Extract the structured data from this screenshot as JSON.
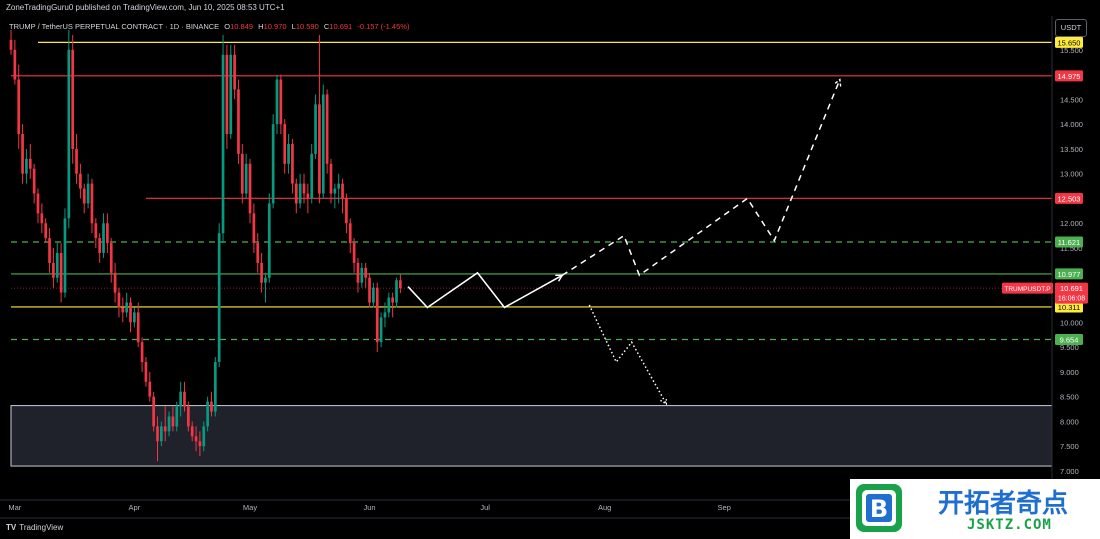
{
  "header": {
    "published_line": "ZoneTradingGuru0 published on TradingView.com, Jun 10, 2025 08:53 UTC+1",
    "symbol": "TRUMP / TetherUS PERPETUAL CONTRACT · 1D · BINANCE",
    "ohlc": {
      "o_label": "O",
      "o": "10.849",
      "h_label": "H",
      "h": "10.970",
      "l_label": "L",
      "l": "10.590",
      "c_label": "C",
      "c": "10.691",
      "change": "-0.157 (-1.45%)"
    },
    "currency": "USDT"
  },
  "footer": {
    "logo_text": "TradingView"
  },
  "watermark": {
    "cn_text": "开拓者奇点",
    "url": "JSKTZ.COM"
  },
  "chart_data": {
    "type": "candlestick",
    "title": "",
    "xlabel": "",
    "ylabel": "",
    "x_ticks": [
      "Mar",
      "Apr",
      "May",
      "Jun",
      "Jul",
      "Aug",
      "Sep"
    ],
    "x_tick_dates": [
      "2025-03-01",
      "2025-04-01",
      "2025-05-01",
      "2025-06-01",
      "2025-07-01",
      "2025-08-01",
      "2025-09-01"
    ],
    "x_range": [
      "2025-02-28",
      "2025-09-30"
    ],
    "y_ticks": [
      "7.000",
      "7.500",
      "8.000",
      "8.500",
      "9.000",
      "9.500",
      "10.000",
      "10.500",
      "11.000",
      "11.500",
      "12.000",
      "12.500",
      "13.000",
      "13.500",
      "14.000",
      "14.500",
      "15.000",
      "15.500"
    ],
    "y_range": [
      7.0,
      15.9
    ],
    "grid": false,
    "colors": {
      "up": "#089981",
      "down": "#f23645",
      "yellow": "#ffeb3b",
      "red": "#f23645",
      "green": "#4caf50",
      "white": "#ffffff",
      "zone": "#2a2e39"
    },
    "current_price": {
      "symbol_label": "TRUMPUSDT.P",
      "value": "10.691",
      "countdown": "16:06:08"
    },
    "price_labels": [
      {
        "value": "15.650",
        "color": "#ffeb3b",
        "text_color": "#000000"
      },
      {
        "value": "14.975",
        "color": "#f23645",
        "text_color": "#ffffff"
      },
      {
        "value": "12.503",
        "color": "#f23645",
        "text_color": "#ffffff"
      },
      {
        "value": "11.621",
        "color": "#4caf50",
        "text_color": "#ffffff"
      },
      {
        "value": "10.977",
        "color": "#4caf50",
        "text_color": "#ffffff"
      },
      {
        "value": "10.311",
        "color": "#ffeb3b",
        "text_color": "#000000"
      },
      {
        "value": "9.654",
        "color": "#4caf50",
        "text_color": "#ffffff"
      }
    ],
    "levels": [
      {
        "price": 15.65,
        "from": "2025-03-07",
        "color": "#ffeb3b",
        "style": "solid"
      },
      {
        "price": 14.975,
        "from": "2025-02-28",
        "color": "#f23645",
        "style": "solid"
      },
      {
        "price": 12.503,
        "from": "2025-04-04",
        "color": "#f23645",
        "style": "solid"
      },
      {
        "price": 11.621,
        "from": "2025-02-28",
        "color": "#4caf50",
        "style": "dashed"
      },
      {
        "price": 10.977,
        "from": "2025-02-28",
        "color": "#4caf50",
        "style": "solid"
      },
      {
        "price": 10.311,
        "from": "2025-02-28",
        "color": "#ffeb3b",
        "style": "solid"
      },
      {
        "price": 9.654,
        "from": "2025-02-28",
        "color": "#4caf50",
        "style": "dashed"
      },
      {
        "price": 10.691,
        "from": "2025-02-28",
        "color": "#f23645",
        "style": "dotted"
      }
    ],
    "zone": {
      "from": "2025-02-28",
      "top": 8.32,
      "bottom": 7.1
    },
    "projections": [
      {
        "style": "solid",
        "color": "#ffffff",
        "points": [
          [
            "2025-06-11",
            10.72
          ],
          [
            "2025-06-16",
            10.3
          ],
          [
            "2025-06-29",
            11.0
          ],
          [
            "2025-07-06",
            10.3
          ],
          [
            "2025-07-21",
            10.95
          ]
        ]
      },
      {
        "style": "dashed",
        "color": "#ffffff",
        "points": [
          [
            "2025-07-21",
            10.95
          ],
          [
            "2025-08-06",
            11.75
          ],
          [
            "2025-08-10",
            10.95
          ],
          [
            "2025-09-07",
            12.5
          ],
          [
            "2025-09-14",
            11.65
          ],
          [
            "2025-10-01",
            14.9
          ]
        ]
      },
      {
        "style": "dotted",
        "color": "#ffffff",
        "points": [
          [
            "2025-07-28",
            10.35
          ],
          [
            "2025-08-04",
            9.2
          ],
          [
            "2025-08-08",
            9.6
          ],
          [
            "2025-08-17",
            8.35
          ]
        ]
      }
    ],
    "candles": [
      [
        "2025-02-28",
        15.7,
        15.9,
        15.4,
        15.5
      ],
      [
        "2025-03-01",
        15.5,
        15.7,
        14.8,
        14.9
      ],
      [
        "2025-03-02",
        14.9,
        15.2,
        13.5,
        13.8
      ],
      [
        "2025-03-03",
        13.8,
        14.0,
        12.8,
        13.0
      ],
      [
        "2025-03-04",
        13.0,
        13.5,
        12.8,
        13.3
      ],
      [
        "2025-03-05",
        13.3,
        13.6,
        12.9,
        13.1
      ],
      [
        "2025-03-06",
        13.1,
        13.2,
        12.4,
        12.6
      ],
      [
        "2025-03-07",
        12.6,
        12.7,
        12.0,
        12.2
      ],
      [
        "2025-03-08",
        12.2,
        12.4,
        11.8,
        12.0
      ],
      [
        "2025-03-09",
        12.0,
        12.1,
        11.6,
        11.7
      ],
      [
        "2025-03-10",
        11.7,
        11.9,
        11.0,
        11.2
      ],
      [
        "2025-03-11",
        11.2,
        11.5,
        10.7,
        10.9
      ],
      [
        "2025-03-12",
        10.9,
        11.6,
        10.8,
        11.4
      ],
      [
        "2025-03-13",
        11.4,
        11.6,
        10.4,
        10.6
      ],
      [
        "2025-03-14",
        10.6,
        12.3,
        10.5,
        12.1
      ],
      [
        "2025-03-15",
        12.1,
        15.9,
        11.9,
        15.5
      ],
      [
        "2025-03-16",
        15.5,
        15.8,
        13.2,
        13.5
      ],
      [
        "2025-03-17",
        13.5,
        13.8,
        12.8,
        13.0
      ],
      [
        "2025-03-18",
        13.0,
        13.2,
        12.5,
        12.7
      ],
      [
        "2025-03-19",
        12.7,
        12.8,
        12.2,
        12.4
      ],
      [
        "2025-03-20",
        12.4,
        13.0,
        12.3,
        12.8
      ],
      [
        "2025-03-21",
        12.8,
        12.9,
        11.8,
        12.0
      ],
      [
        "2025-03-22",
        12.0,
        12.1,
        11.5,
        11.7
      ],
      [
        "2025-03-23",
        11.7,
        11.8,
        11.2,
        11.4
      ],
      [
        "2025-03-24",
        11.4,
        12.2,
        11.3,
        12.0
      ],
      [
        "2025-03-25",
        12.0,
        12.2,
        11.4,
        11.6
      ],
      [
        "2025-03-26",
        11.6,
        11.7,
        10.8,
        11.0
      ],
      [
        "2025-03-27",
        11.0,
        11.2,
        10.4,
        10.6
      ],
      [
        "2025-03-28",
        10.6,
        10.7,
        10.1,
        10.3
      ],
      [
        "2025-03-29",
        10.3,
        10.5,
        10.0,
        10.2
      ],
      [
        "2025-03-30",
        10.2,
        10.6,
        10.1,
        10.4
      ],
      [
        "2025-03-31",
        10.4,
        10.5,
        9.8,
        10.0
      ],
      [
        "2025-04-01",
        10.0,
        10.3,
        9.9,
        10.2
      ],
      [
        "2025-04-02",
        10.2,
        10.4,
        9.5,
        9.6
      ],
      [
        "2025-04-03",
        9.6,
        9.7,
        9.0,
        9.2
      ],
      [
        "2025-04-04",
        9.2,
        9.3,
        8.7,
        8.8
      ],
      [
        "2025-04-05",
        8.8,
        9.0,
        8.4,
        8.5
      ],
      [
        "2025-04-06",
        8.5,
        8.6,
        7.8,
        7.9
      ],
      [
        "2025-04-07",
        7.9,
        8.1,
        7.2,
        7.6
      ],
      [
        "2025-04-08",
        7.6,
        8.0,
        7.5,
        7.9
      ],
      [
        "2025-04-09",
        7.9,
        8.3,
        7.6,
        7.8
      ],
      [
        "2025-04-10",
        7.8,
        8.2,
        7.7,
        8.1
      ],
      [
        "2025-04-11",
        8.1,
        8.3,
        7.8,
        7.9
      ],
      [
        "2025-04-12",
        7.9,
        8.4,
        7.8,
        8.3
      ],
      [
        "2025-04-13",
        8.3,
        8.8,
        8.1,
        8.6
      ],
      [
        "2025-04-14",
        8.6,
        8.8,
        8.2,
        8.3
      ],
      [
        "2025-04-15",
        8.3,
        8.4,
        7.8,
        7.9
      ],
      [
        "2025-04-16",
        7.9,
        8.0,
        7.6,
        7.7
      ],
      [
        "2025-04-17",
        7.7,
        7.9,
        7.4,
        7.6
      ],
      [
        "2025-04-18",
        7.6,
        7.8,
        7.3,
        7.5
      ],
      [
        "2025-04-19",
        7.5,
        8.0,
        7.4,
        7.9
      ],
      [
        "2025-04-20",
        7.9,
        8.5,
        7.8,
        8.4
      ],
      [
        "2025-04-21",
        8.4,
        8.6,
        8.1,
        8.2
      ],
      [
        "2025-04-22",
        8.2,
        9.3,
        8.1,
        9.2
      ],
      [
        "2025-04-23",
        9.2,
        12.0,
        9.1,
        11.8
      ],
      [
        "2025-04-24",
        11.8,
        15.8,
        11.6,
        15.4
      ],
      [
        "2025-04-25",
        15.4,
        15.6,
        13.5,
        13.8
      ],
      [
        "2025-04-26",
        13.8,
        15.6,
        13.7,
        15.4
      ],
      [
        "2025-04-27",
        15.4,
        15.6,
        14.5,
        14.7
      ],
      [
        "2025-04-28",
        14.7,
        14.9,
        13.2,
        13.4
      ],
      [
        "2025-04-29",
        13.4,
        13.6,
        12.4,
        12.6
      ],
      [
        "2025-04-30",
        12.6,
        13.4,
        12.5,
        13.2
      ],
      [
        "2025-05-01",
        13.2,
        13.3,
        12.0,
        12.2
      ],
      [
        "2025-05-02",
        12.2,
        12.4,
        11.4,
        11.6
      ],
      [
        "2025-05-03",
        11.6,
        11.8,
        11.0,
        11.2
      ],
      [
        "2025-05-04",
        11.2,
        11.4,
        10.6,
        10.8
      ],
      [
        "2025-05-05",
        10.8,
        11.0,
        10.4,
        10.9
      ],
      [
        "2025-05-06",
        10.9,
        12.6,
        10.8,
        12.4
      ],
      [
        "2025-05-07",
        12.4,
        14.2,
        12.3,
        14.0
      ],
      [
        "2025-05-08",
        14.0,
        15.0,
        13.8,
        14.9
      ],
      [
        "2025-05-09",
        14.9,
        15.0,
        13.8,
        14.0
      ],
      [
        "2025-05-10",
        14.0,
        14.1,
        13.0,
        13.2
      ],
      [
        "2025-05-11",
        13.2,
        13.8,
        13.0,
        13.6
      ],
      [
        "2025-05-12",
        13.6,
        13.7,
        12.6,
        12.8
      ],
      [
        "2025-05-13",
        12.8,
        12.9,
        12.2,
        12.4
      ],
      [
        "2025-05-14",
        12.4,
        13.0,
        12.3,
        12.8
      ],
      [
        "2025-05-15",
        12.8,
        13.0,
        12.4,
        12.6
      ],
      [
        "2025-05-16",
        12.6,
        12.8,
        12.2,
        12.5
      ],
      [
        "2025-05-17",
        12.5,
        13.6,
        12.4,
        13.4
      ],
      [
        "2025-05-18",
        13.4,
        14.6,
        13.3,
        14.4
      ],
      [
        "2025-05-19",
        14.4,
        15.8,
        12.4,
        12.6
      ],
      [
        "2025-05-20",
        12.6,
        14.8,
        12.5,
        14.6
      ],
      [
        "2025-05-21",
        14.6,
        14.7,
        13.0,
        13.2
      ],
      [
        "2025-05-22",
        13.2,
        13.3,
        12.4,
        12.6
      ],
      [
        "2025-05-23",
        12.6,
        12.8,
        12.3,
        12.7
      ],
      [
        "2025-05-24",
        12.7,
        13.0,
        12.4,
        12.8
      ],
      [
        "2025-05-25",
        12.8,
        12.9,
        12.2,
        12.5
      ],
      [
        "2025-05-26",
        12.5,
        12.6,
        11.8,
        12.0
      ],
      [
        "2025-05-27",
        12.0,
        12.1,
        11.4,
        11.6
      ],
      [
        "2025-05-28",
        11.6,
        11.7,
        11.0,
        11.2
      ],
      [
        "2025-05-29",
        11.2,
        11.3,
        10.6,
        10.8
      ],
      [
        "2025-05-30",
        10.8,
        11.2,
        10.7,
        11.1
      ],
      [
        "2025-05-31",
        11.1,
        11.2,
        10.7,
        10.9
      ],
      [
        "2025-06-01",
        10.9,
        11.0,
        10.3,
        10.4
      ],
      [
        "2025-06-02",
        10.4,
        10.8,
        10.3,
        10.7
      ],
      [
        "2025-06-03",
        10.7,
        10.8,
        9.4,
        9.6
      ],
      [
        "2025-06-04",
        9.6,
        10.2,
        9.5,
        10.1
      ],
      [
        "2025-06-05",
        10.1,
        10.4,
        9.9,
        10.2
      ],
      [
        "2025-06-06",
        10.2,
        10.6,
        10.1,
        10.5
      ],
      [
        "2025-06-07",
        10.5,
        10.6,
        10.1,
        10.4
      ],
      [
        "2025-06-08",
        10.4,
        10.9,
        10.3,
        10.85
      ],
      [
        "2025-06-09",
        10.85,
        10.97,
        10.59,
        10.69
      ]
    ]
  }
}
